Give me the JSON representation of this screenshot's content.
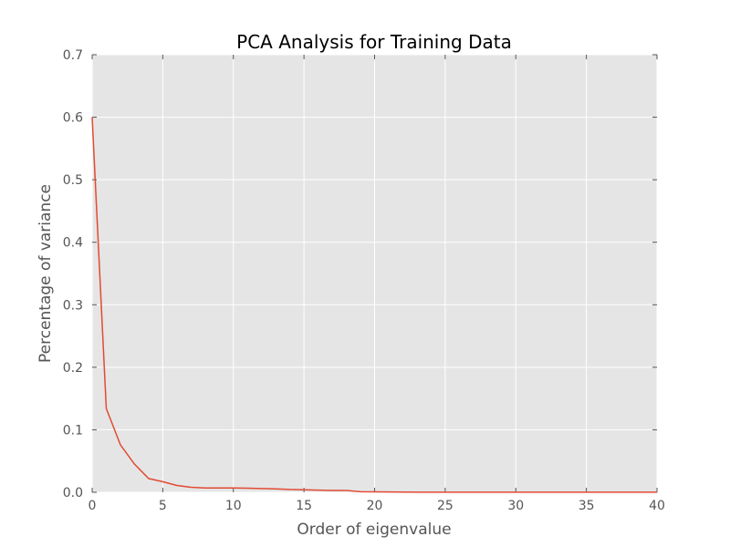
{
  "chart_data": {
    "type": "line",
    "title": "PCA Analysis for Training Data",
    "xlabel": "Order of eigenvalue",
    "ylabel": "Percentage of variance",
    "xlim": [
      0,
      40
    ],
    "ylim": [
      0,
      0.7
    ],
    "xticks": [
      0,
      5,
      10,
      15,
      20,
      25,
      30,
      35,
      40
    ],
    "yticks": [
      0.0,
      0.1,
      0.2,
      0.3,
      0.4,
      0.5,
      0.6,
      0.7
    ],
    "xtick_labels": [
      "0",
      "5",
      "10",
      "15",
      "20",
      "25",
      "30",
      "35",
      "40"
    ],
    "ytick_labels": [
      "0.0",
      "0.1",
      "0.2",
      "0.3",
      "0.4",
      "0.5",
      "0.6",
      "0.7"
    ],
    "grid": true,
    "series": [
      {
        "color": "#e24a33",
        "x": [
          0,
          1,
          2,
          3,
          4,
          5,
          6,
          7,
          8,
          9,
          10,
          11,
          12,
          13,
          14,
          15,
          16,
          17,
          18,
          19,
          20,
          21,
          22,
          23,
          24,
          25,
          26,
          27,
          28,
          29,
          30,
          31,
          32,
          33,
          34,
          35,
          36,
          37,
          38,
          39,
          40
        ],
        "y": [
          0.6,
          0.134,
          0.076,
          0.045,
          0.022,
          0.017,
          0.011,
          0.008,
          0.007,
          0.007,
          0.007,
          0.0065,
          0.006,
          0.0055,
          0.0045,
          0.004,
          0.0035,
          0.003,
          0.003,
          0.001,
          0.0008,
          0.0005,
          0.0003,
          0.0002,
          0.0001,
          0.0001,
          0.0001,
          0.0001,
          0.0001,
          0.0001,
          0.0001,
          0.0001,
          0.0001,
          0.0001,
          0.0001,
          0.0001,
          0.0001,
          0.0001,
          0.0001,
          0.0001,
          0.0001
        ]
      }
    ],
    "colors": {
      "plot_background": "#e5e5e5",
      "grid": "#ffffff",
      "line": "#e24a33"
    }
  }
}
